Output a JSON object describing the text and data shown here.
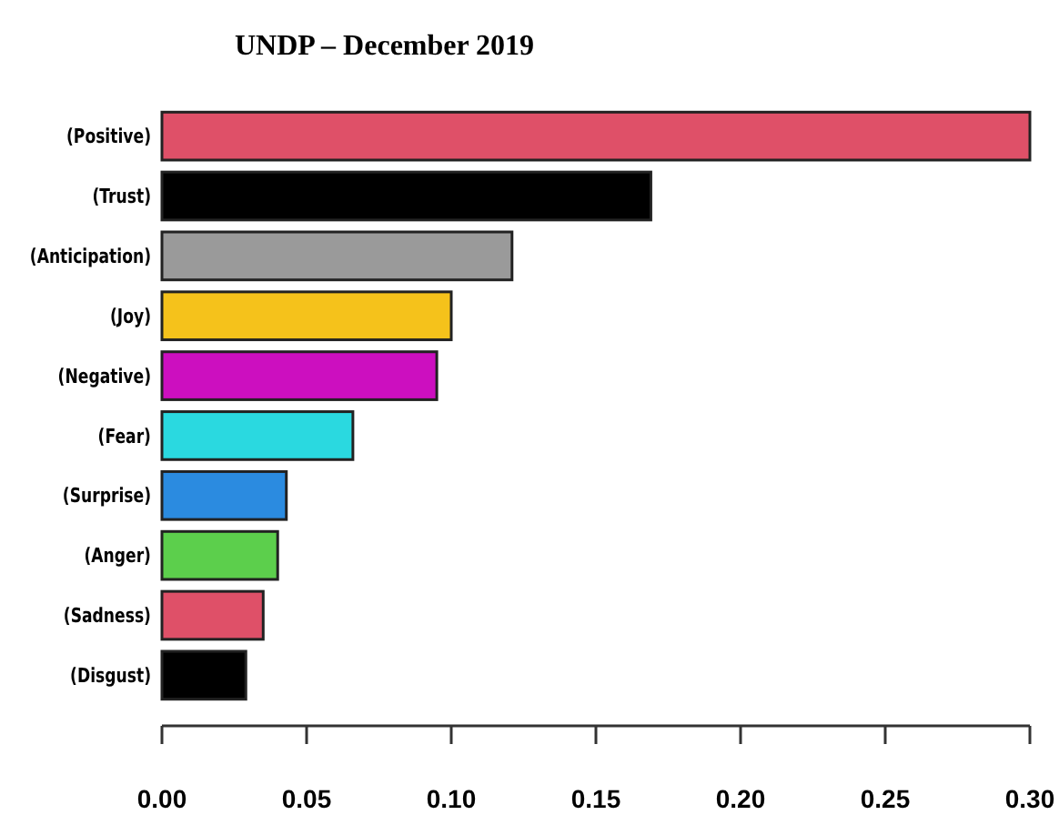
{
  "chart_data": {
    "type": "bar",
    "orientation": "horizontal",
    "title": "UNDP – December 2019",
    "categories": [
      "(Positive)",
      "(Trust)",
      "(Anticipation)",
      "(Joy)",
      "(Negative)",
      "(Fear)",
      "(Surprise)",
      "(Anger)",
      "(Sadness)",
      "(Disgust)"
    ],
    "values": [
      0.3,
      0.169,
      0.121,
      0.1,
      0.095,
      0.066,
      0.043,
      0.04,
      0.035,
      0.029
    ],
    "colors": [
      "#df5068",
      "#000000",
      "#9a9a9a",
      "#f5c21b",
      "#cc0fbf",
      "#2ad9e0",
      "#2b8be0",
      "#5ccf4c",
      "#df5068",
      "#000000"
    ],
    "xlim": [
      0,
      0.3
    ],
    "xticks": [
      {
        "value": 0,
        "label": "0.00"
      },
      {
        "value": 0.05,
        "label": "0.05"
      },
      {
        "value": 0.1,
        "label": "0.10"
      },
      {
        "value": 0.15,
        "label": "0.15"
      },
      {
        "value": 0.2,
        "label": "0.20"
      },
      {
        "value": 0.25,
        "label": "0.25"
      },
      {
        "value": 0.3,
        "label": "0.30"
      }
    ],
    "grid": false
  }
}
